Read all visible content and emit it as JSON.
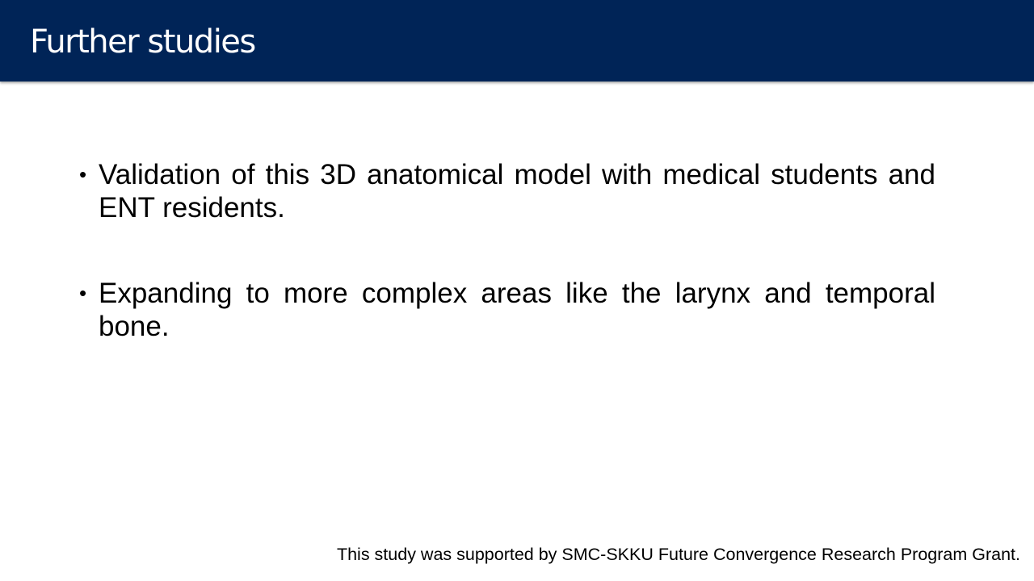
{
  "slide": {
    "title": "Further studies",
    "bullets": [
      {
        "marker": "•",
        "text": "Validation of this 3D anatomical model with medical students and ENT residents."
      },
      {
        "marker": "•",
        "text": "Expanding to more complex areas like the larynx and temporal bone."
      }
    ],
    "footnote": "This study was supported by SMC-SKKU Future Convergence Research Program Grant."
  },
  "colors": {
    "title_bar": "#002457",
    "title_text": "#ffffff",
    "body_text": "#000000",
    "background": "#ffffff"
  }
}
